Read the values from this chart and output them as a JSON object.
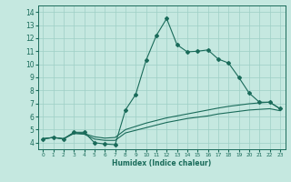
{
  "xlabel": "Humidex (Indice chaleur)",
  "ylabel": "",
  "bg_color": "#c5e8e0",
  "grid_color": "#9ecfc5",
  "line_color": "#1a6b5a",
  "xlim": [
    -0.5,
    23.5
  ],
  "ylim": [
    3.5,
    14.5
  ],
  "xticks": [
    0,
    1,
    2,
    3,
    4,
    5,
    6,
    7,
    8,
    9,
    10,
    11,
    12,
    13,
    14,
    15,
    16,
    17,
    18,
    19,
    20,
    21,
    22,
    23
  ],
  "yticks": [
    4,
    5,
    6,
    7,
    8,
    9,
    10,
    11,
    12,
    13,
    14
  ],
  "curve1_x": [
    0,
    1,
    2,
    3,
    4,
    5,
    6,
    7,
    8,
    9,
    10,
    11,
    12,
    13,
    14,
    15,
    16,
    17,
    18,
    19,
    20,
    21,
    22,
    23
  ],
  "curve1_y": [
    4.3,
    4.4,
    4.3,
    4.8,
    4.8,
    4.0,
    3.9,
    3.85,
    6.5,
    7.7,
    10.3,
    12.2,
    13.5,
    11.5,
    10.95,
    11.0,
    11.1,
    10.4,
    10.1,
    9.0,
    7.8,
    7.1,
    7.1,
    6.6
  ],
  "curve2_x": [
    0,
    1,
    2,
    3,
    4,
    5,
    6,
    7,
    8,
    9,
    10,
    11,
    12,
    13,
    14,
    15,
    16,
    17,
    18,
    19,
    20,
    21,
    22,
    23
  ],
  "curve2_y": [
    4.3,
    4.4,
    4.3,
    4.75,
    4.7,
    4.45,
    4.35,
    4.4,
    5.0,
    5.25,
    5.5,
    5.7,
    5.9,
    6.05,
    6.2,
    6.35,
    6.5,
    6.65,
    6.78,
    6.88,
    6.98,
    7.05,
    7.1,
    6.6
  ],
  "curve3_x": [
    0,
    1,
    2,
    3,
    4,
    5,
    6,
    7,
    8,
    9,
    10,
    11,
    12,
    13,
    14,
    15,
    16,
    17,
    18,
    19,
    20,
    21,
    22,
    23
  ],
  "curve3_y": [
    4.3,
    4.4,
    4.3,
    4.7,
    4.65,
    4.28,
    4.18,
    4.18,
    4.75,
    4.95,
    5.15,
    5.35,
    5.55,
    5.7,
    5.85,
    5.95,
    6.05,
    6.2,
    6.3,
    6.4,
    6.5,
    6.55,
    6.6,
    6.45
  ]
}
